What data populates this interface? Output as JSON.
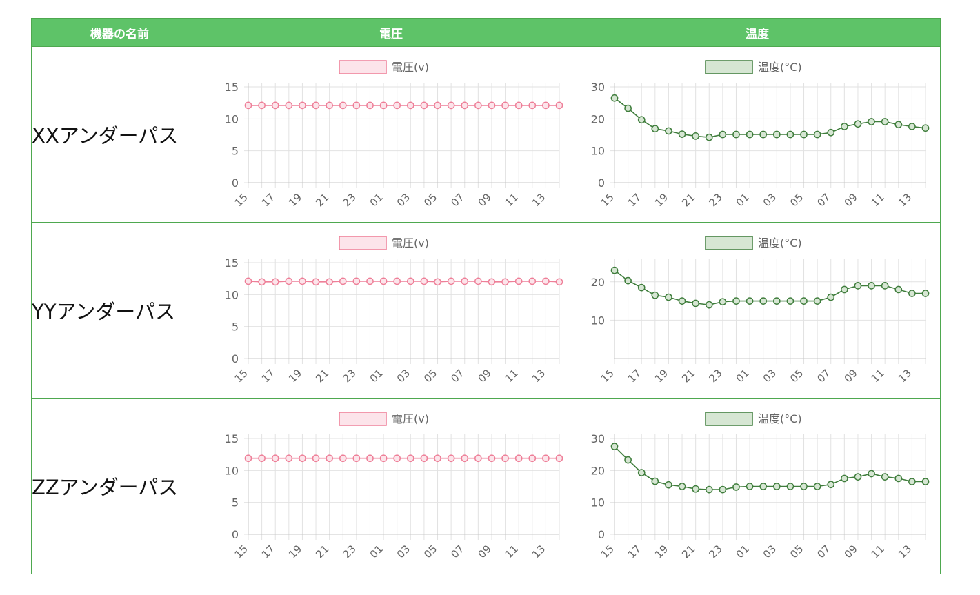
{
  "table": {
    "headers": {
      "device": "機器の名前",
      "voltage": "電圧",
      "temperature": "温度"
    }
  },
  "colors": {
    "header_bg": "#5ec368",
    "border": "#4ea84f",
    "voltage_line": "#ee7f98",
    "voltage_fill": "#fce4ea",
    "temperature_line": "#3f7d3c",
    "temperature_fill": "#d6e6d3",
    "grid": "#e2e2e2",
    "tick_text": "#666666"
  },
  "chart_data": [
    {
      "type": "line",
      "device": "XXアンダーパス",
      "metric": "voltage",
      "legend": "電圧(v)",
      "x": [
        "15",
        "16",
        "17",
        "18",
        "19",
        "20",
        "21",
        "22",
        "23",
        "00",
        "01",
        "02",
        "03",
        "04",
        "05",
        "06",
        "07",
        "08",
        "09",
        "10",
        "11",
        "12",
        "13",
        "14"
      ],
      "xticks": [
        "15",
        "17",
        "19",
        "21",
        "23",
        "01",
        "03",
        "05",
        "07",
        "09",
        "11",
        "13"
      ],
      "values": [
        12.1,
        12.1,
        12.1,
        12.1,
        12.1,
        12.1,
        12.1,
        12.1,
        12.1,
        12.1,
        12.1,
        12.1,
        12.1,
        12.1,
        12.1,
        12.1,
        12.1,
        12.1,
        12.1,
        12.1,
        12.1,
        12.1,
        12.1,
        12.1
      ],
      "yticks": [
        0,
        5,
        10,
        15
      ],
      "ylim": [
        0,
        15
      ]
    },
    {
      "type": "line",
      "device": "XXアンダーパス",
      "metric": "temperature",
      "legend": "温度(°C)",
      "x": [
        "15",
        "16",
        "17",
        "18",
        "19",
        "20",
        "21",
        "22",
        "23",
        "00",
        "01",
        "02",
        "03",
        "04",
        "05",
        "06",
        "07",
        "08",
        "09",
        "10",
        "11",
        "12",
        "13",
        "14"
      ],
      "xticks": [
        "15",
        "17",
        "19",
        "21",
        "23",
        "01",
        "03",
        "05",
        "07",
        "09",
        "11",
        "13"
      ],
      "values": [
        26.5,
        23.3,
        19.7,
        16.9,
        16.2,
        15.2,
        14.6,
        14.2,
        15.1,
        15.1,
        15.1,
        15.1,
        15.1,
        15.1,
        15.1,
        15.1,
        15.7,
        17.6,
        18.4,
        19.1,
        19.1,
        18.2,
        17.6,
        17.1
      ],
      "yticks": [
        0,
        10,
        20,
        30
      ],
      "ylim": [
        0,
        30
      ]
    },
    {
      "type": "line",
      "device": "YYアンダーパス",
      "metric": "voltage",
      "legend": "電圧(v)",
      "x": [
        "15",
        "16",
        "17",
        "18",
        "19",
        "20",
        "21",
        "22",
        "23",
        "00",
        "01",
        "02",
        "03",
        "04",
        "05",
        "06",
        "07",
        "08",
        "09",
        "10",
        "11",
        "12",
        "13",
        "14"
      ],
      "xticks": [
        "15",
        "17",
        "19",
        "21",
        "23",
        "01",
        "03",
        "05",
        "07",
        "09",
        "11",
        "13"
      ],
      "values": [
        12.1,
        12.0,
        12.0,
        12.1,
        12.1,
        12.0,
        12.0,
        12.1,
        12.1,
        12.1,
        12.1,
        12.1,
        12.1,
        12.1,
        12.0,
        12.1,
        12.1,
        12.1,
        12.0,
        12.0,
        12.1,
        12.1,
        12.1,
        12.0
      ],
      "yticks": [
        0,
        5,
        10,
        15
      ],
      "ylim": [
        0,
        15
      ]
    },
    {
      "type": "line",
      "device": "YYアンダーパス",
      "metric": "temperature",
      "legend": "温度(°C)",
      "x": [
        "15",
        "16",
        "17",
        "18",
        "19",
        "20",
        "21",
        "22",
        "23",
        "00",
        "01",
        "02",
        "03",
        "04",
        "05",
        "06",
        "07",
        "08",
        "09",
        "10",
        "11",
        "12",
        "13",
        "14"
      ],
      "xticks": [
        "15",
        "17",
        "19",
        "21",
        "23",
        "01",
        "03",
        "05",
        "07",
        "09",
        "11",
        "13"
      ],
      "values": [
        23.0,
        20.3,
        18.5,
        16.5,
        16.0,
        15.0,
        14.4,
        14.0,
        14.8,
        15.0,
        15.0,
        15.0,
        15.0,
        15.0,
        15.0,
        15.0,
        16.0,
        18.0,
        19.0,
        19.0,
        19.0,
        18.0,
        17.0,
        17.0
      ],
      "yticks": [
        10,
        20
      ],
      "ylim": [
        0,
        25
      ]
    },
    {
      "type": "line",
      "device": "ZZアンダーパス",
      "metric": "voltage",
      "legend": "電圧(v)",
      "x": [
        "15",
        "16",
        "17",
        "18",
        "19",
        "20",
        "21",
        "22",
        "23",
        "00",
        "01",
        "02",
        "03",
        "04",
        "05",
        "06",
        "07",
        "08",
        "09",
        "10",
        "11",
        "12",
        "13",
        "14"
      ],
      "xticks": [
        "15",
        "17",
        "19",
        "21",
        "23",
        "01",
        "03",
        "05",
        "07",
        "09",
        "11",
        "13"
      ],
      "values": [
        11.9,
        11.9,
        11.9,
        11.9,
        11.9,
        11.9,
        11.9,
        11.9,
        11.9,
        11.9,
        11.9,
        11.9,
        11.9,
        11.9,
        11.9,
        11.9,
        11.9,
        11.9,
        11.9,
        11.9,
        11.9,
        11.9,
        11.9,
        11.9
      ],
      "yticks": [
        0,
        5,
        10,
        15
      ],
      "ylim": [
        0,
        15
      ]
    },
    {
      "type": "line",
      "device": "ZZアンダーパス",
      "metric": "temperature",
      "legend": "温度(°C)",
      "x": [
        "15",
        "16",
        "17",
        "18",
        "19",
        "20",
        "21",
        "22",
        "23",
        "00",
        "01",
        "02",
        "03",
        "04",
        "05",
        "06",
        "07",
        "08",
        "09",
        "10",
        "11",
        "12",
        "13",
        "14"
      ],
      "xticks": [
        "15",
        "17",
        "19",
        "21",
        "23",
        "01",
        "03",
        "05",
        "07",
        "09",
        "11",
        "13"
      ],
      "values": [
        27.5,
        23.3,
        19.3,
        16.6,
        15.5,
        15.0,
        14.2,
        14.0,
        14.0,
        14.8,
        15.0,
        15.0,
        15.0,
        15.0,
        15.0,
        15.0,
        15.6,
        17.5,
        18.0,
        19.0,
        18.0,
        17.5,
        16.5,
        16.5
      ],
      "yticks": [
        0,
        10,
        20,
        30
      ],
      "ylim": [
        0,
        30
      ]
    }
  ],
  "rows": [
    {
      "name": "XXアンダーパス"
    },
    {
      "name": "YYアンダーパス"
    },
    {
      "name": "ZZアンダーパス"
    }
  ]
}
